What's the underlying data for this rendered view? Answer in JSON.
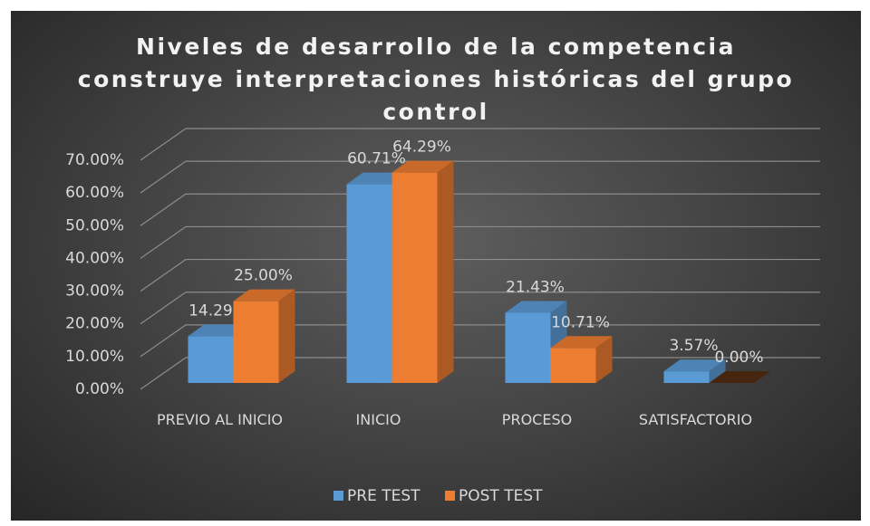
{
  "chart_data": {
    "type": "bar3d",
    "title": "Niveles de desarrollo de la competencia construye interpretaciones históricas del grupo control",
    "categories": [
      "PREVIO AL INICIO",
      "INICIO",
      "PROCESO",
      "SATISFACTORIO"
    ],
    "series": [
      {
        "name": "PRE TEST",
        "color": "#5b9bd5",
        "values": [
          14.29,
          60.71,
          21.43,
          3.57
        ],
        "value_labels": [
          "14.29%",
          "60.71%",
          "21.43%",
          "3.57%"
        ]
      },
      {
        "name": "POST TEST",
        "color": "#ed7d31",
        "values": [
          25.0,
          64.29,
          10.71,
          0.0
        ],
        "value_labels": [
          "25.00%",
          "64.29%",
          "10.71%",
          "0.00%"
        ]
      }
    ],
    "ylim": [
      0,
      70
    ],
    "yticks": [
      {
        "value": 0,
        "label": "0.00%"
      },
      {
        "value": 10,
        "label": "10.00%"
      },
      {
        "value": 20,
        "label": "20.00%"
      },
      {
        "value": 30,
        "label": "30.00%"
      },
      {
        "value": 40,
        "label": "40.00%"
      },
      {
        "value": 50,
        "label": "50.00%"
      },
      {
        "value": 60,
        "label": "60.00%"
      },
      {
        "value": 70,
        "label": "70.00%"
      }
    ],
    "grid": true,
    "legend": "bottom"
  }
}
